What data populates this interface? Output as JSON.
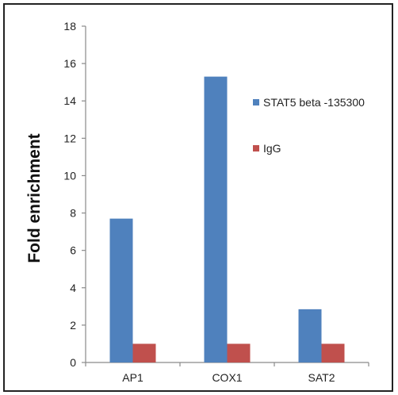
{
  "chart_data": {
    "type": "bar",
    "categories": [
      "AP1",
      "COX1",
      "SAT2"
    ],
    "series": [
      {
        "name": "STAT5 beta -135300",
        "values": [
          7.7,
          15.3,
          2.85
        ],
        "color": "#4f81bd"
      },
      {
        "name": "IgG",
        "values": [
          1.0,
          1.0,
          1.0
        ],
        "color": "#c0504d"
      }
    ],
    "xlabel": "",
    "ylabel": "Fold enrichment",
    "ylim": [
      0,
      18
    ],
    "yticks": [
      "0",
      "2",
      "4",
      "6",
      "8",
      "10",
      "12",
      "14",
      "16",
      "18"
    ],
    "grid": false,
    "legend_position": "right"
  }
}
